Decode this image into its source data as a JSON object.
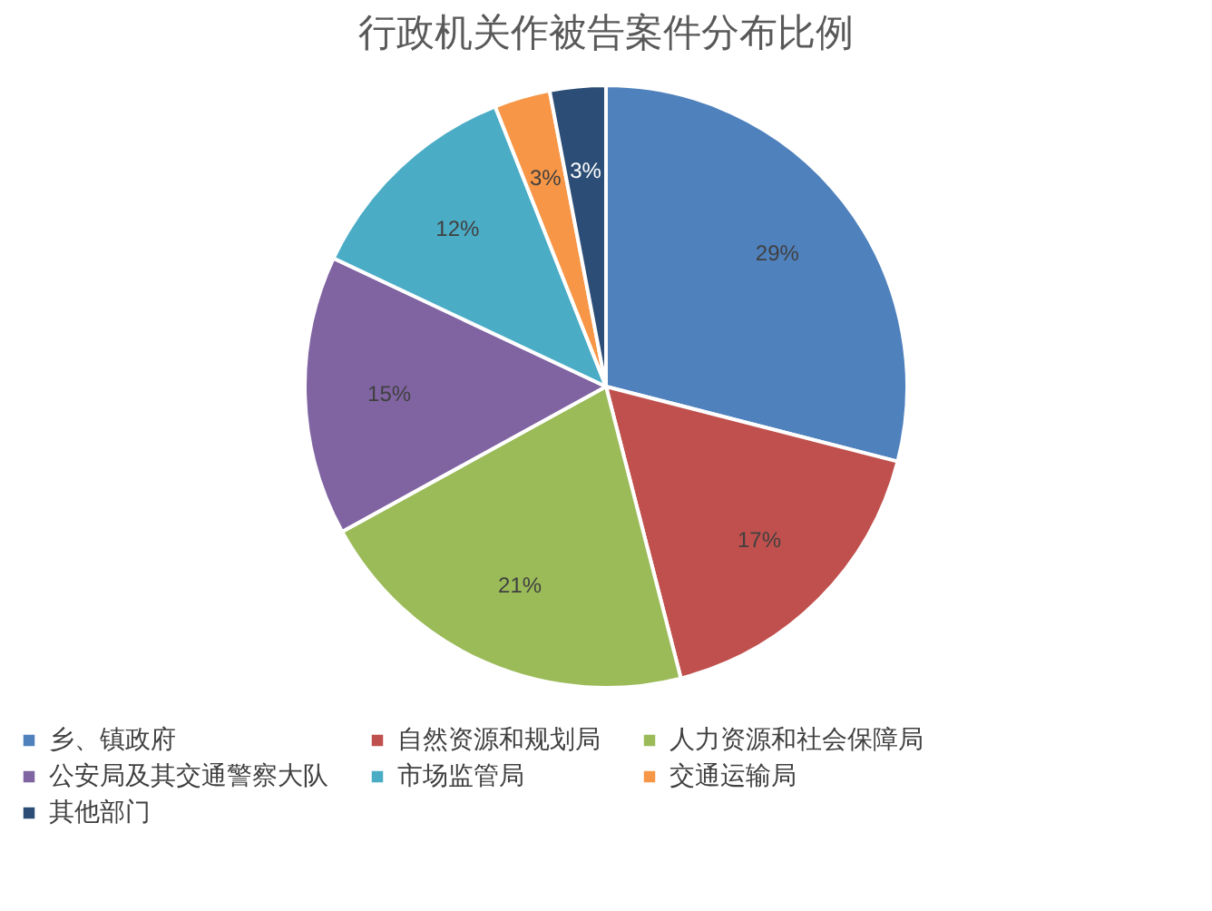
{
  "chart_data": {
    "type": "pie",
    "title": "行政机关作被告案件分布比例",
    "categories": [
      "乡、镇政府",
      "自然资源和规划局",
      "人力资源和社会保障局",
      "公安局及其交通警察大队",
      "市场监管局",
      "交通运输局",
      "其他部门"
    ],
    "values": [
      29,
      17,
      21,
      15,
      12,
      3,
      3
    ],
    "colors": [
      "#4f81bd",
      "#c0504d",
      "#9bbb59",
      "#8064a2",
      "#4bacc6",
      "#f79646",
      "#2c4d75"
    ],
    "value_labels": [
      "29%",
      "17%",
      "21%",
      "15%",
      "12%",
      "3%",
      "3%"
    ],
    "legend": "bottom"
  }
}
